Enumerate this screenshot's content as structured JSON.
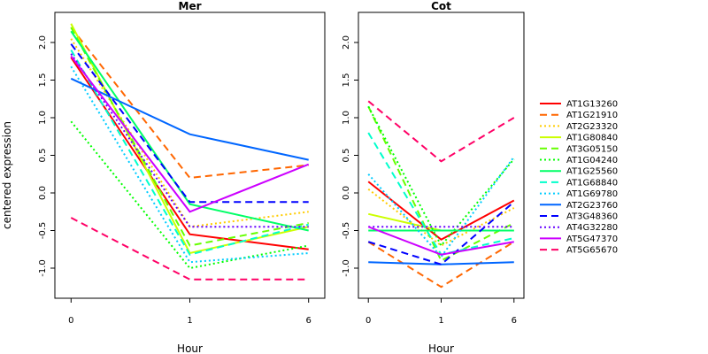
{
  "chart_data": {
    "type": "line",
    "ylabel": "centered expression",
    "xlabel": "Hour",
    "x_ticks": [
      "0",
      "1",
      "6"
    ],
    "y_ticks": [
      "-1.0",
      "-0.5",
      "0.0",
      "0.5",
      "1.0",
      "1.5",
      "2.0"
    ],
    "ylim": [
      -1.4,
      2.4
    ],
    "legend_position": "right",
    "series_styles": [
      {
        "name": "AT1G13260",
        "color": "#ff0000",
        "dash": "solid"
      },
      {
        "name": "AT1G21910",
        "color": "#ff6600",
        "dash": "dashed"
      },
      {
        "name": "AT2G23320",
        "color": "#ffcc00",
        "dash": "dotted"
      },
      {
        "name": "AT1G80840",
        "color": "#ccff00",
        "dash": "solid"
      },
      {
        "name": "AT3G05150",
        "color": "#66ff00",
        "dash": "dashed"
      },
      {
        "name": "AT1G04240",
        "color": "#00ff00",
        "dash": "dotted"
      },
      {
        "name": "AT1G25560",
        "color": "#00ff66",
        "dash": "solid"
      },
      {
        "name": "AT1G68840",
        "color": "#00ffcc",
        "dash": "dashed"
      },
      {
        "name": "AT1G69780",
        "color": "#00ccff",
        "dash": "dotted"
      },
      {
        "name": "AT2G23760",
        "color": "#0066ff",
        "dash": "solid"
      },
      {
        "name": "AT3G48360",
        "color": "#0000ff",
        "dash": "dashed"
      },
      {
        "name": "AT4G32280",
        "color": "#6600ff",
        "dash": "dotted"
      },
      {
        "name": "AT5G47370",
        "color": "#cc00ff",
        "dash": "solid"
      },
      {
        "name": "AT5G65670",
        "color": "#ff0066",
        "dash": "dashed"
      }
    ],
    "panels": [
      {
        "title": "Mer",
        "series": [
          {
            "name": "AT1G13260",
            "values": [
              1.8,
              -0.55,
              -0.75
            ]
          },
          {
            "name": "AT1G21910",
            "values": [
              2.2,
              0.2,
              0.37
            ]
          },
          {
            "name": "AT2G23320",
            "values": [
              2.05,
              -0.45,
              -0.25
            ]
          },
          {
            "name": "AT1G80840",
            "values": [
              2.25,
              -0.8,
              -0.45
            ]
          },
          {
            "name": "AT3G05150",
            "values": [
              2.2,
              -0.7,
              -0.4
            ]
          },
          {
            "name": "AT1G04240",
            "values": [
              0.95,
              -1.0,
              -0.7
            ]
          },
          {
            "name": "AT1G25560",
            "values": [
              2.15,
              -0.15,
              -0.5
            ]
          },
          {
            "name": "AT1G68840",
            "values": [
              1.9,
              -0.82,
              -0.42
            ]
          },
          {
            "name": "AT1G69780",
            "values": [
              1.68,
              -0.92,
              -0.8
            ]
          },
          {
            "name": "AT2G23760",
            "values": [
              1.52,
              0.78,
              0.44
            ]
          },
          {
            "name": "AT3G48360",
            "values": [
              1.98,
              -0.12,
              -0.12
            ]
          },
          {
            "name": "AT4G32280",
            "values": [
              1.85,
              -0.45,
              -0.45
            ]
          },
          {
            "name": "AT5G47370",
            "values": [
              1.82,
              -0.25,
              0.38
            ]
          },
          {
            "name": "AT5G65670",
            "values": [
              -0.33,
              -1.15,
              -1.15
            ]
          }
        ]
      },
      {
        "title": "Cot",
        "series": [
          {
            "name": "AT1G13260",
            "values": [
              0.15,
              -0.62,
              -0.1
            ]
          },
          {
            "name": "AT1G21910",
            "values": [
              -0.65,
              -1.25,
              -0.65
            ]
          },
          {
            "name": "AT2G23320",
            "values": [
              0.05,
              -0.7,
              -0.2
            ]
          },
          {
            "name": "AT1G80840",
            "values": [
              -0.28,
              -0.5,
              -0.5
            ]
          },
          {
            "name": "AT3G05150",
            "values": [
              1.15,
              -0.9,
              -0.4
            ]
          },
          {
            "name": "AT1G04240",
            "values": [
              1.15,
              -0.7,
              0.45
            ]
          },
          {
            "name": "AT1G25560",
            "values": [
              -0.5,
              -0.5,
              -0.5
            ]
          },
          {
            "name": "AT1G68840",
            "values": [
              0.8,
              -0.82,
              -0.6
            ]
          },
          {
            "name": "AT1G69780",
            "values": [
              0.25,
              -0.85,
              0.48
            ]
          },
          {
            "name": "AT2G23760",
            "values": [
              -0.92,
              -0.95,
              -0.92
            ]
          },
          {
            "name": "AT3G48360",
            "values": [
              -0.65,
              -0.95,
              -0.12
            ]
          },
          {
            "name": "AT4G32280",
            "values": [
              -0.45,
              -0.45,
              -0.45
            ]
          },
          {
            "name": "AT5G47370",
            "values": [
              -0.45,
              -0.82,
              -0.65
            ]
          },
          {
            "name": "AT5G65670",
            "values": [
              1.22,
              0.42,
              1.0
            ]
          }
        ]
      }
    ]
  }
}
